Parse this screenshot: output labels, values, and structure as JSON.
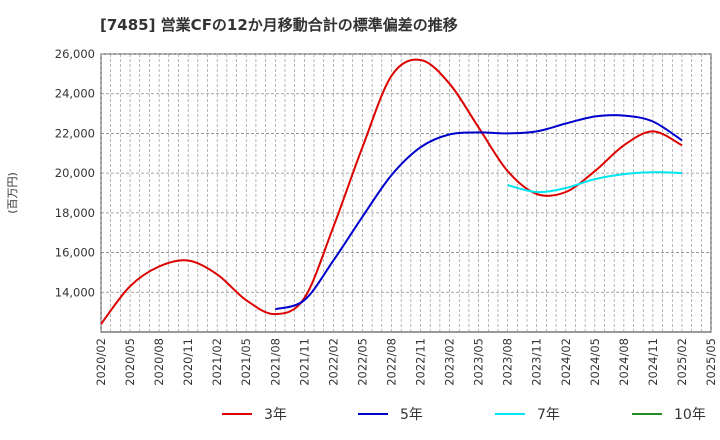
{
  "chart_data": {
    "type": "line",
    "title": "[7485]  営業CFの12か月移動合計の標準偏差の推移",
    "ylabel": "(百万円)",
    "xlabel": "",
    "ylim": [
      12000,
      26000
    ],
    "y_ticks": [
      14000,
      16000,
      18000,
      20000,
      22000,
      24000,
      26000
    ],
    "y_tick_labels": [
      "14,000",
      "16,000",
      "18,000",
      "20,000",
      "22,000",
      "24,000",
      "26,000"
    ],
    "x_ticks": [
      "2020/02",
      "2020/05",
      "2020/08",
      "2020/11",
      "2021/02",
      "2021/05",
      "2021/08",
      "2021/11",
      "2022/02",
      "2022/05",
      "2022/08",
      "2022/11",
      "2023/02",
      "2023/05",
      "2023/08",
      "2023/11",
      "2024/02",
      "2024/05",
      "2024/08",
      "2024/11",
      "2025/02",
      "2025/05"
    ],
    "grid": true,
    "legend": "bottom",
    "series": [
      {
        "name": "3年",
        "color": "#dd0000",
        "x": [
          "2020/02",
          "2020/05",
          "2020/08",
          "2020/11",
          "2021/02",
          "2021/05",
          "2021/08",
          "2021/11",
          "2022/02",
          "2022/05",
          "2022/08",
          "2022/11",
          "2023/02",
          "2023/05",
          "2023/08",
          "2023/11",
          "2024/02",
          "2024/05",
          "2024/08",
          "2024/11",
          "2025/02"
        ],
        "values": [
          12400,
          14300,
          15300,
          15600,
          14900,
          13600,
          12900,
          13700,
          17300,
          21300,
          24900,
          25700,
          24500,
          22300,
          20100,
          18950,
          19050,
          20100,
          21400,
          22100,
          21400
        ]
      },
      {
        "name": "5年",
        "color": "#0000cc",
        "x": [
          "2021/08",
          "2021/11",
          "2022/02",
          "2022/05",
          "2022/08",
          "2022/11",
          "2023/02",
          "2023/05",
          "2023/08",
          "2023/11",
          "2024/02",
          "2024/05",
          "2024/08",
          "2024/11",
          "2025/02"
        ],
        "values": [
          13150,
          13600,
          15600,
          17800,
          19900,
          21300,
          21950,
          22050,
          22000,
          22100,
          22500,
          22850,
          22900,
          22600,
          21650
        ]
      },
      {
        "name": "7年",
        "color": "#00e5ee",
        "x": [
          "2023/08",
          "2023/11",
          "2024/02",
          "2024/05",
          "2024/08",
          "2024/11",
          "2025/02"
        ],
        "values": [
          19400,
          19050,
          19250,
          19700,
          19950,
          20050,
          20000
        ]
      },
      {
        "name": "10年",
        "color": "#228b22",
        "x": [],
        "values": []
      }
    ]
  }
}
